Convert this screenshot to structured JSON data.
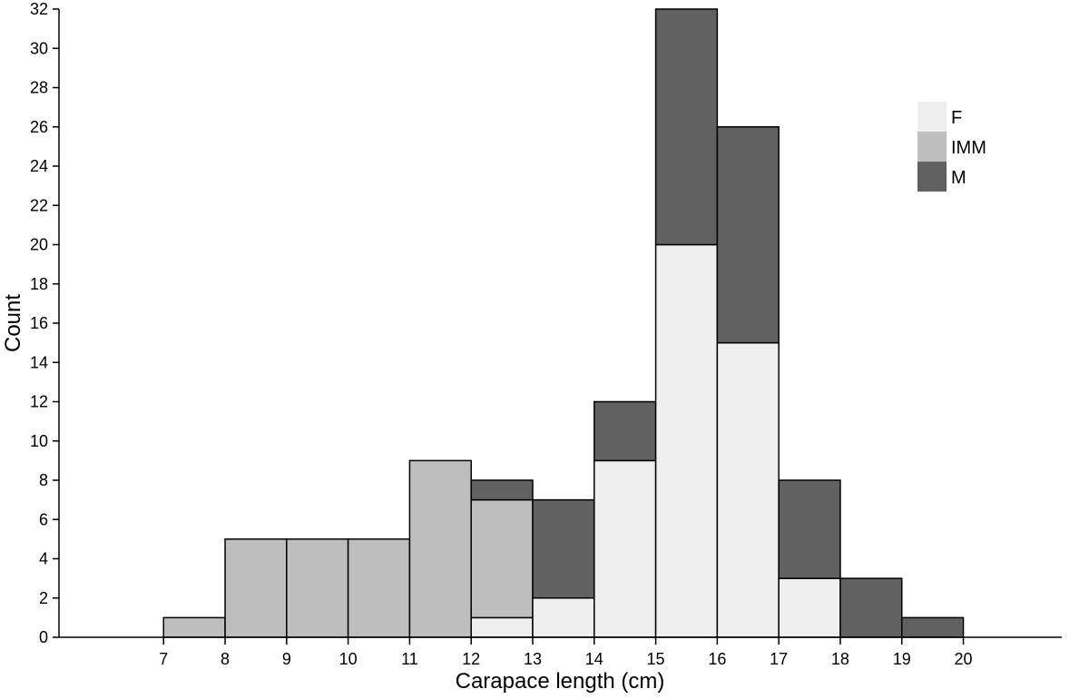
{
  "chart_data": {
    "type": "bar",
    "stacked": true,
    "bin_edges": [
      7,
      8,
      9,
      10,
      11,
      12,
      13,
      14,
      15,
      16,
      17,
      18,
      19,
      20
    ],
    "series": [
      {
        "name": "F",
        "color": "#efefef",
        "values": [
          0,
          0,
          0,
          0,
          0,
          1,
          2,
          9,
          20,
          15,
          3,
          0,
          0
        ]
      },
      {
        "name": "IMM",
        "color": "#bebebe",
        "values": [
          1,
          5,
          5,
          5,
          9,
          6,
          0,
          0,
          0,
          0,
          0,
          0,
          0
        ]
      },
      {
        "name": "M",
        "color": "#616161",
        "values": [
          0,
          0,
          0,
          0,
          0,
          1,
          5,
          3,
          12,
          11,
          5,
          3,
          1
        ]
      }
    ],
    "title": "",
    "xlabel": "Carapace length (cm)",
    "ylabel": "Count",
    "xlim": [
      5.3,
      21.6
    ],
    "ylim": [
      0,
      32
    ],
    "xticks": [
      "7",
      "8",
      "9",
      "10",
      "11",
      "12",
      "13",
      "14",
      "15",
      "16",
      "17",
      "18",
      "19",
      "20"
    ],
    "yticks": [
      "0",
      "2",
      "4",
      "6",
      "8",
      "10",
      "12",
      "14",
      "16",
      "18",
      "20",
      "22",
      "24",
      "26",
      "28",
      "30",
      "32"
    ],
    "grid": false,
    "legend_position": "top-right"
  }
}
